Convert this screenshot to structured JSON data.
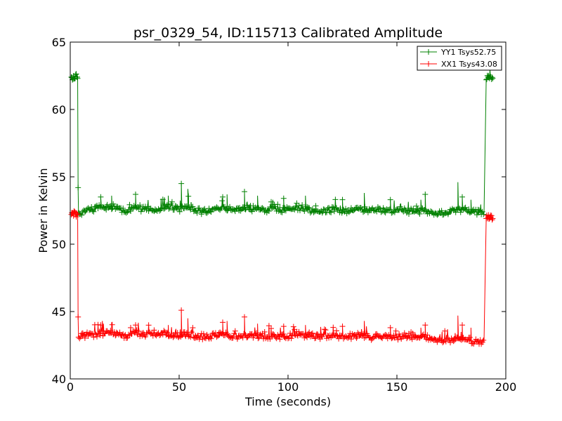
{
  "chart_data": {
    "type": "line",
    "title": "psr_0329_54, ID:115713 Calibrated Amplitude",
    "xlabel": "Time (seconds)",
    "ylabel": "Power in Kelvin",
    "xlim": [
      0,
      200
    ],
    "ylim": [
      40,
      65
    ],
    "xticks": [
      0,
      50,
      100,
      150,
      200
    ],
    "yticks": [
      40,
      45,
      50,
      55,
      60,
      65
    ],
    "grid": false,
    "legend_position": "top-right",
    "marker": "+",
    "series": [
      {
        "name": "YY1 Tsys52.75",
        "color": "#008000",
        "points": [
          [
            0.5,
            62.4
          ],
          [
            1,
            62.2
          ],
          [
            1.5,
            62.5
          ],
          [
            2,
            62.3
          ],
          [
            2.5,
            62.6
          ],
          [
            3,
            62.4
          ],
          [
            3.4,
            62.3
          ],
          [
            3.6,
            54.2
          ],
          [
            3.8,
            52.3
          ],
          [
            6,
            52.4
          ],
          [
            10,
            52.6
          ],
          [
            14,
            52.7
          ],
          [
            18,
            52.8
          ],
          [
            22,
            52.6
          ],
          [
            26,
            52.5
          ],
          [
            30,
            52.7
          ],
          [
            34,
            52.6
          ],
          [
            38,
            52.5
          ],
          [
            42,
            52.7
          ],
          [
            46,
            52.8
          ],
          [
            50,
            52.6
          ],
          [
            54,
            52.7
          ],
          [
            58,
            52.5
          ],
          [
            62,
            52.4
          ],
          [
            66,
            52.6
          ],
          [
            70,
            52.7
          ],
          [
            74,
            52.6
          ],
          [
            78,
            52.5
          ],
          [
            82,
            52.6
          ],
          [
            86,
            52.7
          ],
          [
            90,
            52.5
          ],
          [
            94,
            52.6
          ],
          [
            98,
            52.5
          ],
          [
            102,
            52.6
          ],
          [
            106,
            52.7
          ],
          [
            110,
            52.5
          ],
          [
            114,
            52.4
          ],
          [
            118,
            52.5
          ],
          [
            122,
            52.6
          ],
          [
            126,
            52.4
          ],
          [
            130,
            52.5
          ],
          [
            134,
            52.6
          ],
          [
            138,
            52.5
          ],
          [
            142,
            52.6
          ],
          [
            146,
            52.5
          ],
          [
            150,
            52.6
          ],
          [
            154,
            52.5
          ],
          [
            158,
            52.4
          ],
          [
            162,
            52.5
          ],
          [
            166,
            52.4
          ],
          [
            170,
            52.3
          ],
          [
            174,
            52.4
          ],
          [
            178,
            52.6
          ],
          [
            182,
            52.5
          ],
          [
            186,
            52.4
          ],
          [
            190,
            52.3
          ],
          [
            191,
            62.2
          ],
          [
            191.8,
            62.4
          ],
          [
            192.5,
            62.3
          ],
          [
            193.2,
            62.4
          ],
          [
            194,
            62.3
          ]
        ],
        "spikes": [
          [
            14,
            53.5
          ],
          [
            19,
            53.6
          ],
          [
            30,
            53.7
          ],
          [
            45,
            53.6
          ],
          [
            51,
            54.5
          ],
          [
            54,
            54.1
          ],
          [
            70,
            53.5
          ],
          [
            72,
            53.7
          ],
          [
            80,
            53.9
          ],
          [
            86,
            53.6
          ],
          [
            98,
            53.4
          ],
          [
            108,
            53.6
          ],
          [
            125,
            53.3
          ],
          [
            135,
            53.8
          ],
          [
            147,
            53.3
          ],
          [
            161,
            53.3
          ],
          [
            163,
            53.7
          ],
          [
            178,
            54.6
          ],
          [
            180,
            53.5
          ],
          [
            184,
            53.3
          ]
        ]
      },
      {
        "name": "XX1 Tsys43.08",
        "color": "#ff0000",
        "points": [
          [
            0.5,
            52.2
          ],
          [
            1,
            52.3
          ],
          [
            1.5,
            52.1
          ],
          [
            2,
            52.4
          ],
          [
            2.5,
            52.2
          ],
          [
            3,
            52.3
          ],
          [
            3.4,
            52.2
          ],
          [
            3.6,
            44.6
          ],
          [
            3.8,
            43.1
          ],
          [
            6,
            43.2
          ],
          [
            10,
            43.3
          ],
          [
            14,
            43.4
          ],
          [
            18,
            43.4
          ],
          [
            22,
            43.3
          ],
          [
            26,
            43.2
          ],
          [
            30,
            43.4
          ],
          [
            34,
            43.3
          ],
          [
            38,
            43.2
          ],
          [
            42,
            43.4
          ],
          [
            46,
            43.3
          ],
          [
            50,
            43.2
          ],
          [
            54,
            43.3
          ],
          [
            58,
            43.2
          ],
          [
            62,
            43.1
          ],
          [
            66,
            43.2
          ],
          [
            70,
            43.3
          ],
          [
            74,
            43.2
          ],
          [
            78,
            43.1
          ],
          [
            82,
            43.2
          ],
          [
            86,
            43.2
          ],
          [
            90,
            43.1
          ],
          [
            94,
            43.2
          ],
          [
            98,
            43.1
          ],
          [
            102,
            43.2
          ],
          [
            106,
            43.3
          ],
          [
            110,
            43.2
          ],
          [
            114,
            43.1
          ],
          [
            118,
            43.2
          ],
          [
            122,
            43.2
          ],
          [
            126,
            43.1
          ],
          [
            130,
            43.2
          ],
          [
            134,
            43.2
          ],
          [
            138,
            43.1
          ],
          [
            142,
            43.2
          ],
          [
            146,
            43.1
          ],
          [
            150,
            43.1
          ],
          [
            154,
            43.2
          ],
          [
            158,
            43.1
          ],
          [
            162,
            43.1
          ],
          [
            166,
            43.0
          ],
          [
            170,
            42.9
          ],
          [
            174,
            42.9
          ],
          [
            178,
            43.0
          ],
          [
            182,
            42.9
          ],
          [
            186,
            42.8
          ],
          [
            190,
            42.8
          ],
          [
            191,
            51.9
          ],
          [
            191.8,
            52.0
          ],
          [
            192.5,
            51.9
          ],
          [
            193.2,
            52.0
          ],
          [
            194,
            51.9
          ]
        ],
        "spikes": [
          [
            14,
            44.0
          ],
          [
            19,
            44.2
          ],
          [
            30,
            44.0
          ],
          [
            45,
            44.0
          ],
          [
            51,
            45.1
          ],
          [
            54,
            44.5
          ],
          [
            70,
            44.2
          ],
          [
            72,
            44.3
          ],
          [
            80,
            44.6
          ],
          [
            86,
            44.1
          ],
          [
            98,
            43.9
          ],
          [
            108,
            44.0
          ],
          [
            125,
            43.9
          ],
          [
            135,
            44.3
          ],
          [
            147,
            43.8
          ],
          [
            161,
            43.8
          ],
          [
            163,
            44.0
          ],
          [
            178,
            44.7
          ],
          [
            180,
            44.0
          ],
          [
            184,
            43.8
          ]
        ]
      }
    ]
  }
}
